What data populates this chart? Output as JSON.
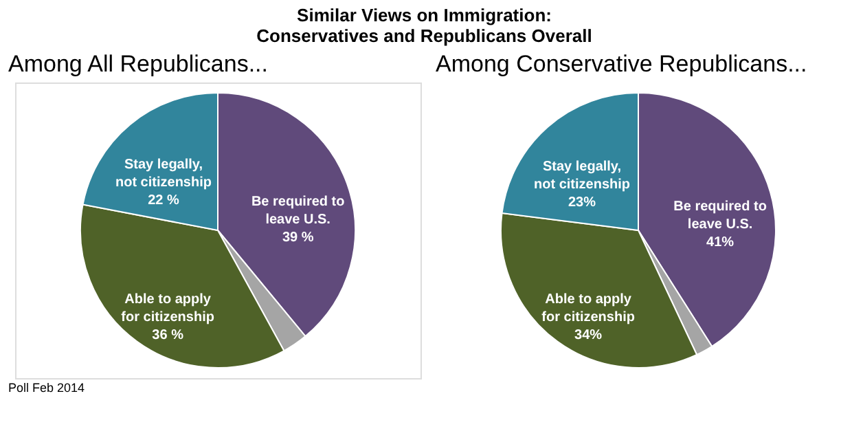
{
  "chart_data": [
    {
      "type": "pie",
      "title": "Similar Views on Immigration: Conservatives and Republicans Overall",
      "subtitle": "Among All Republicans...",
      "categories": [
        "Be required to leave U.S.",
        null,
        "Able to apply for citizenship",
        "Stay legally, not citizenship"
      ],
      "values": [
        39,
        3,
        36,
        22
      ],
      "value_labels": [
        "39 %",
        null,
        "36 %",
        "22 %"
      ],
      "colors": [
        "#604a7b",
        "#a5a5a5",
        "#4f6228",
        "#31859c"
      ],
      "annotations": [
        "Poll Feb 2014"
      ]
    },
    {
      "type": "pie",
      "subtitle": "Among Conservative Republicans...",
      "categories": [
        "Be required to leave U.S.",
        null,
        "Able to apply for citizenship",
        "Stay legally, not citizenship"
      ],
      "values": [
        41,
        2,
        34,
        23
      ],
      "value_labels": [
        "41%",
        null,
        "34%",
        "23%"
      ],
      "colors": [
        "#604a7b",
        "#a5a5a5",
        "#4f6228",
        "#31859c"
      ]
    }
  ]
}
